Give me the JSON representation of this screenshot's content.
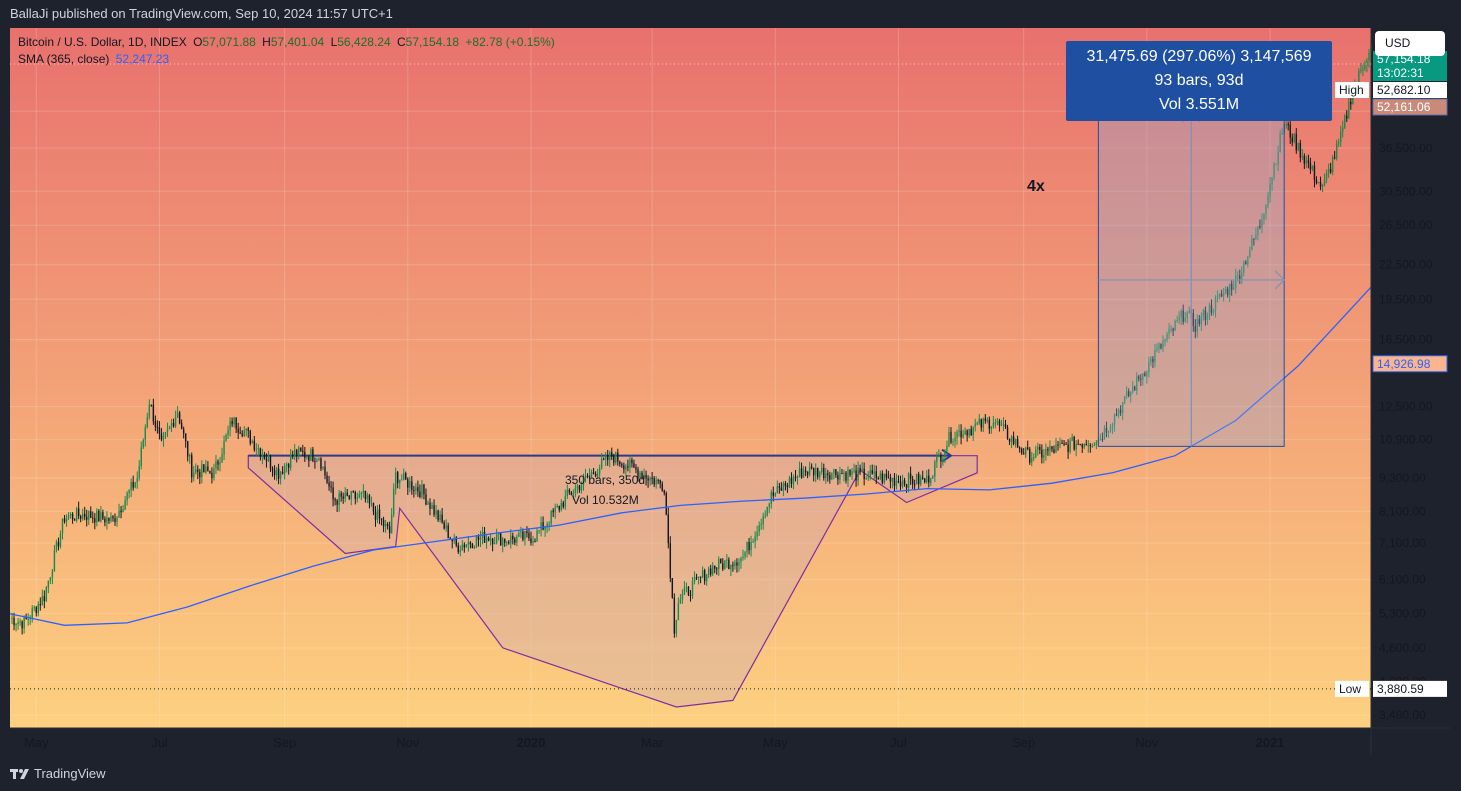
{
  "header": {
    "publisher": "BallaJi published on TradingView.com, Sep 10, 2024 11:57 UTC+1"
  },
  "legend": {
    "symbol": "Bitcoin / U.S. Dollar, 1D, INDEX",
    "o_label": "O",
    "o": "57,071.88",
    "h_label": "H",
    "h": "57,401.04",
    "l_label": "L",
    "l": "56,428.24",
    "c_label": "C",
    "c": "57,154.18",
    "change": "+82.78 (+0.15%)",
    "sma_label": "SMA (365, close)",
    "sma_value": "52,247.23"
  },
  "currency_button": "USD",
  "measurement": {
    "line1": "31,475.69 (297.06%) 3,147,569",
    "line2": "93 bars, 93d",
    "line3": "Vol 3.551M"
  },
  "pattern_label": {
    "text": "350 bars, 350d",
    "vol": "Vol 10.532M"
  },
  "annotation": "4x",
  "price_tags": {
    "current": "57,154.18",
    "countdown": "13:02:31",
    "high_label": "High",
    "high_value": "52,682.10",
    "sma_tag": "52,161.06",
    "sma_level": "14,926.98",
    "low_label": "Low",
    "low_value": "3,880.59"
  },
  "footer": {
    "brand": "TradingView"
  },
  "colors": {
    "gradient_top": "#e8716e",
    "gradient_bottom": "#fdd180",
    "candle_up": "#1b8a4a",
    "candle_down": "#131722",
    "sma": "#2962ff",
    "pattern": "#7b2fa0",
    "measure": "#1e4fa0",
    "countdown": "#089981"
  },
  "chart_data": {
    "type": "candlestick",
    "scale": "log",
    "title": "Bitcoin / U.S. Dollar, 1D, INDEX",
    "y_ticks": [
      42500,
      36500,
      30500,
      26500,
      22500,
      19500,
      16500,
      12500,
      10900,
      9300,
      8100,
      7100,
      6100,
      5300,
      4600,
      4000,
      3480
    ],
    "y_tick_labels": [
      "42,500.00",
      "36,500.00",
      "30,500.00",
      "26,500.00",
      "22,500.00",
      "19,500.00",
      "16,500.00",
      "12,500.00",
      "10,900.00",
      "9,300.00",
      "8,100.00",
      "7,100.00",
      "6,100.00",
      "5,300.00",
      "4,600.00",
      "4,000.00",
      "3,480.00"
    ],
    "x_ticks": [
      "2019-05-01",
      "2019-07-01",
      "2019-09-01",
      "2019-11-01",
      "2020-01-01",
      "2020-03-01",
      "2020-05-01",
      "2020-07-01",
      "2020-09-01",
      "2020-11-01",
      "2021-01-01"
    ],
    "x_tick_labels": [
      "May",
      "Jul",
      "Sep",
      "Nov",
      "2020",
      "Mar",
      "May",
      "Jul",
      "Sep",
      "Nov",
      "2021"
    ],
    "x_range": [
      "2019-04-18",
      "2021-02-20"
    ],
    "y_range": [
      3300,
      60000
    ],
    "price_anchors": [
      [
        "2019-04-18",
        5200
      ],
      [
        "2019-04-25",
        5100
      ],
      [
        "2019-05-05",
        5700
      ],
      [
        "2019-05-15",
        7900
      ],
      [
        "2019-05-25",
        8000
      ],
      [
        "2019-06-08",
        7800
      ],
      [
        "2019-06-20",
        9300
      ],
      [
        "2019-06-26",
        12800
      ],
      [
        "2019-07-02",
        10600
      ],
      [
        "2019-07-10",
        12300
      ],
      [
        "2019-07-17",
        9600
      ],
      [
        "2019-07-28",
        9500
      ],
      [
        "2019-08-06",
        11800
      ],
      [
        "2019-08-12",
        11300
      ],
      [
        "2019-08-29",
        9500
      ],
      [
        "2019-09-06",
        10300
      ],
      [
        "2019-09-18",
        10200
      ],
      [
        "2019-09-25",
        8500
      ],
      [
        "2019-10-10",
        8600
      ],
      [
        "2019-10-23",
        7400
      ],
      [
        "2019-10-26",
        9400
      ],
      [
        "2019-11-08",
        8800
      ],
      [
        "2019-11-25",
        7000
      ],
      [
        "2019-12-10",
        7300
      ],
      [
        "2019-12-20",
        7200
      ],
      [
        "2020-01-03",
        7300
      ],
      [
        "2020-01-20",
        8700
      ],
      [
        "2020-02-10",
        10200
      ],
      [
        "2020-02-20",
        9700
      ],
      [
        "2020-03-07",
        9000
      ],
      [
        "2020-03-12",
        5000
      ],
      [
        "2020-03-14",
        5600
      ],
      [
        "2020-03-30",
        6400
      ],
      [
        "2020-04-15",
        6700
      ],
      [
        "2020-04-29",
        8600
      ],
      [
        "2020-05-15",
        9600
      ],
      [
        "2020-06-01",
        9500
      ],
      [
        "2020-06-15",
        9400
      ],
      [
        "2020-07-01",
        9200
      ],
      [
        "2020-07-15",
        9200
      ],
      [
        "2020-07-27",
        11100
      ],
      [
        "2020-08-17",
        11800
      ],
      [
        "2020-09-03",
        10200
      ],
      [
        "2020-09-10",
        10300
      ],
      [
        "2020-09-25",
        10700
      ],
      [
        "2020-10-08",
        10900
      ],
      [
        "2020-10-21",
        12800
      ],
      [
        "2020-11-05",
        15500
      ],
      [
        "2020-11-20",
        18500
      ],
      [
        "2020-11-25",
        17500
      ],
      [
        "2020-12-16",
        21300
      ],
      [
        "2020-12-27",
        26500
      ],
      [
        "2021-01-08",
        40500
      ],
      [
        "2021-01-16",
        36000
      ],
      [
        "2021-01-27",
        30800
      ],
      [
        "2021-02-05",
        38000
      ],
      [
        "2021-02-10",
        45000
      ],
      [
        "2021-02-20",
        56000
      ]
    ],
    "sma_365": [
      [
        "2019-04-18",
        5300
      ],
      [
        "2019-05-15",
        5050
      ],
      [
        "2019-06-15",
        5100
      ],
      [
        "2019-07-15",
        5450
      ],
      [
        "2019-08-15",
        5950
      ],
      [
        "2019-09-15",
        6450
      ],
      [
        "2019-10-15",
        6900
      ],
      [
        "2019-11-15",
        7150
      ],
      [
        "2019-12-15",
        7400
      ],
      [
        "2020-01-15",
        7650
      ],
      [
        "2020-02-15",
        8050
      ],
      [
        "2020-03-15",
        8300
      ],
      [
        "2020-04-15",
        8450
      ],
      [
        "2020-05-15",
        8550
      ],
      [
        "2020-06-15",
        8700
      ],
      [
        "2020-07-15",
        8900
      ],
      [
        "2020-08-15",
        8850
      ],
      [
        "2020-09-15",
        9100
      ],
      [
        "2020-10-15",
        9500
      ],
      [
        "2020-11-15",
        10200
      ],
      [
        "2020-12-15",
        11800
      ],
      [
        "2021-01-15",
        14800
      ],
      [
        "2021-02-20",
        20500
      ]
    ],
    "pattern_polyline": [
      [
        "2019-08-14",
        9700
      ],
      [
        "2019-10-01",
        6800
      ],
      [
        "2019-10-26",
        7000
      ],
      [
        "2019-10-28",
        8200
      ],
      [
        "2019-12-18",
        4600
      ],
      [
        "2020-03-13",
        3600
      ],
      [
        "2020-04-10",
        3700
      ],
      [
        "2020-06-12",
        9600
      ],
      [
        "2020-07-05",
        8400
      ],
      [
        "2020-08-09",
        9500
      ],
      [
        "2020-08-09",
        10200
      ],
      [
        "2019-08-14",
        10200
      ],
      [
        "2019-08-14",
        9700
      ]
    ],
    "neckline": [
      [
        "2019-08-14",
        10200
      ],
      [
        "2020-07-27",
        10200
      ]
    ],
    "measure_rect": {
      "x": [
        "2020-10-08",
        "2021-01-08"
      ],
      "y": [
        10600,
        42100
      ]
    }
  }
}
